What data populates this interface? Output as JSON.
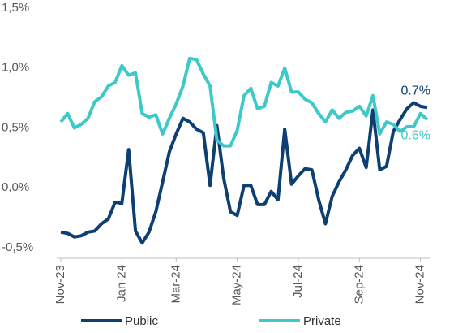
{
  "chart_data": {
    "type": "line",
    "categories": [
      "Nov-23",
      null,
      null,
      null,
      null,
      null,
      null,
      null,
      null,
      "Jan-24",
      null,
      null,
      null,
      null,
      null,
      null,
      null,
      "Mar-24",
      null,
      null,
      null,
      null,
      null,
      null,
      null,
      null,
      "May-24",
      null,
      null,
      null,
      null,
      null,
      null,
      null,
      null,
      "Jul-24",
      null,
      null,
      null,
      null,
      null,
      null,
      null,
      null,
      "Sep-24",
      null,
      null,
      null,
      null,
      null,
      null,
      null,
      null,
      "Nov-24",
      null
    ],
    "series": [
      {
        "name": "Public",
        "color": "#0d3f73",
        "values": [
          -0.37,
          -0.38,
          -0.41,
          -0.4,
          -0.37,
          -0.36,
          -0.3,
          -0.26,
          -0.12,
          -0.13,
          0.32,
          -0.36,
          -0.46,
          -0.37,
          -0.2,
          0.05,
          0.3,
          0.45,
          0.58,
          0.55,
          0.49,
          0.46,
          0.02,
          0.52,
          0.08,
          -0.2,
          -0.23,
          0.02,
          0.02,
          -0.14,
          -0.14,
          -0.03,
          -0.1,
          0.49,
          0.03,
          0.1,
          0.16,
          0.15,
          -0.1,
          -0.3,
          -0.07,
          0.05,
          0.15,
          0.27,
          0.33,
          0.17,
          0.65,
          0.15,
          0.18,
          0.47,
          0.57,
          0.66,
          0.71,
          0.68,
          0.67
        ]
      },
      {
        "name": "Private",
        "color": "#3ec9c9",
        "values": [
          0.55,
          0.62,
          0.5,
          0.53,
          0.58,
          0.72,
          0.76,
          0.85,
          0.88,
          1.02,
          0.94,
          0.96,
          0.62,
          0.59,
          0.61,
          0.45,
          0.58,
          0.7,
          0.85,
          1.08,
          1.07,
          0.95,
          0.85,
          0.4,
          0.35,
          0.35,
          0.48,
          0.77,
          0.83,
          0.66,
          0.68,
          0.88,
          0.85,
          1.0,
          0.8,
          0.8,
          0.74,
          0.71,
          0.62,
          0.55,
          0.65,
          0.58,
          0.63,
          0.64,
          0.68,
          0.6,
          0.77,
          0.45,
          0.55,
          0.53,
          0.47,
          0.51,
          0.51,
          0.62,
          0.57
        ]
      }
    ],
    "ylim": [
      -0.5,
      1.5
    ],
    "yticks": [
      {
        "value": -0.5,
        "label": "-0,5%"
      },
      {
        "value": 0,
        "label": "0,0%"
      },
      {
        "value": 0.5,
        "label": "0,5%"
      },
      {
        "value": 1.0,
        "label": "1,0%"
      },
      {
        "value": 1.5,
        "label": "1,5%"
      }
    ],
    "grid": false,
    "legend": "bottom",
    "annotations": [
      {
        "text": "0.7%",
        "series": 0
      },
      {
        "text": "0.6%",
        "series": 1
      }
    ]
  }
}
